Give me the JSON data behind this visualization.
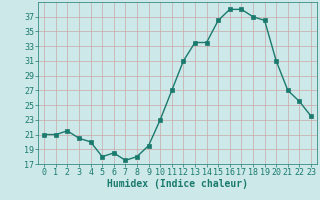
{
  "x": [
    0,
    1,
    2,
    3,
    4,
    5,
    6,
    7,
    8,
    9,
    10,
    11,
    12,
    13,
    14,
    15,
    16,
    17,
    18,
    19,
    20,
    21,
    22,
    23
  ],
  "y": [
    21,
    21,
    21.5,
    20.5,
    20,
    18,
    18.5,
    17.5,
    18,
    19.5,
    23,
    27,
    31,
    33.5,
    33.5,
    36.5,
    38,
    38,
    37,
    36.5,
    31,
    27,
    25.5,
    23.5
  ],
  "xlabel": "Humidex (Indice chaleur)",
  "xlim": [
    -0.5,
    23.5
  ],
  "ylim": [
    17,
    39
  ],
  "yticks": [
    17,
    19,
    21,
    23,
    25,
    27,
    29,
    31,
    33,
    35,
    37
  ],
  "xticks": [
    0,
    1,
    2,
    3,
    4,
    5,
    6,
    7,
    8,
    9,
    10,
    11,
    12,
    13,
    14,
    15,
    16,
    17,
    18,
    19,
    20,
    21,
    22,
    23
  ],
  "line_color": "#1a7a6e",
  "marker_color": "#1a7a6e",
  "bg_color": "#cce8e8",
  "grid_color_major": "#c8a8a8",
  "grid_color_minor": "#dcc8c8",
  "xlabel_fontsize": 7,
  "tick_fontsize": 6,
  "line_width": 1.0,
  "marker_size": 2.5
}
